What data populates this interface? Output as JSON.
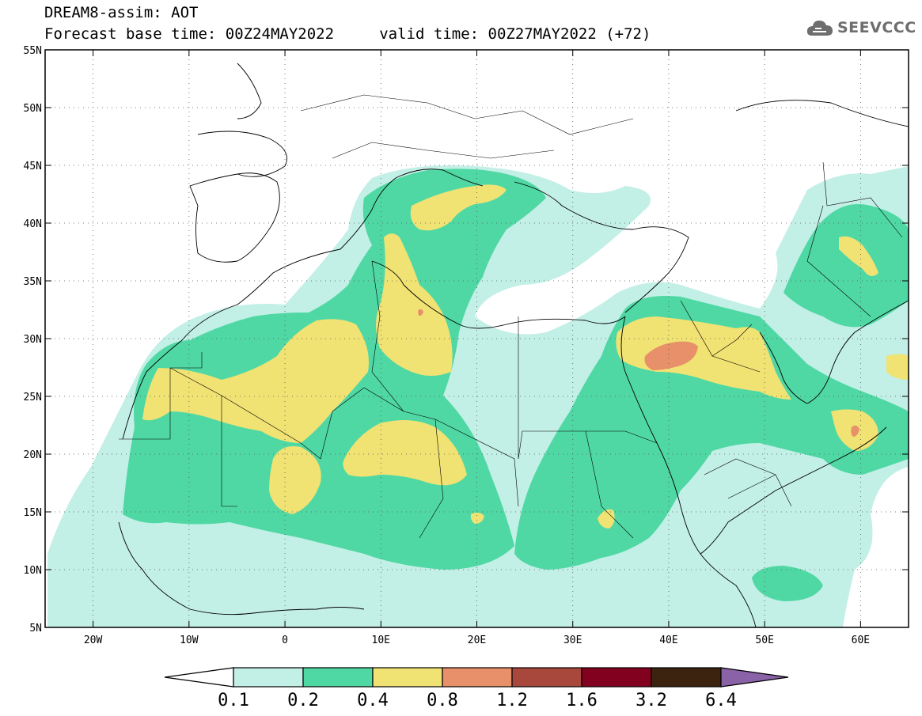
{
  "header": {
    "title_line1": "DREAM8-assim: AOT",
    "title_line2": "Forecast base time: 00Z24MAY2022     valid time: 00Z27MAY2022 (+72)"
  },
  "logo": {
    "text": "SEEVCCC",
    "icon": "cloud-icon",
    "color": "#6e6e6e"
  },
  "map": {
    "extent": {
      "lon_min": -25,
      "lon_max": 65,
      "lat_min": 5,
      "lat_max": 55
    },
    "lat_ticks": [
      {
        "lat": 55,
        "label": "55N"
      },
      {
        "lat": 50,
        "label": "50N"
      },
      {
        "lat": 45,
        "label": "45N"
      },
      {
        "lat": 40,
        "label": "40N"
      },
      {
        "lat": 35,
        "label": "35N"
      },
      {
        "lat": 30,
        "label": "30N"
      },
      {
        "lat": 25,
        "label": "25N"
      },
      {
        "lat": 20,
        "label": "20N"
      },
      {
        "lat": 15,
        "label": "15N"
      },
      {
        "lat": 10,
        "label": "10N"
      },
      {
        "lat": 5,
        "label": "5N"
      }
    ],
    "lon_ticks": [
      {
        "lon": -20,
        "label": "20W"
      },
      {
        "lon": -10,
        "label": "10W"
      },
      {
        "lon": 0,
        "label": "0"
      },
      {
        "lon": 10,
        "label": "10E"
      },
      {
        "lon": 20,
        "label": "20E"
      },
      {
        "lon": 30,
        "label": "30E"
      },
      {
        "lon": 40,
        "label": "40E"
      },
      {
        "lon": 50,
        "label": "50E"
      },
      {
        "lon": 60,
        "label": "60E"
      }
    ],
    "grid": true
  },
  "colorbar": {
    "colors": [
      "#c2efe6",
      "#4fd8a4",
      "#f0e273",
      "#e8906a",
      "#a8483c",
      "#82011f",
      "#3b2310",
      "#8a62a8"
    ],
    "labels": [
      "0.1",
      "0.2",
      "0.4",
      "0.8",
      "1.2",
      "1.6",
      "3.2",
      "6.4"
    ]
  }
}
